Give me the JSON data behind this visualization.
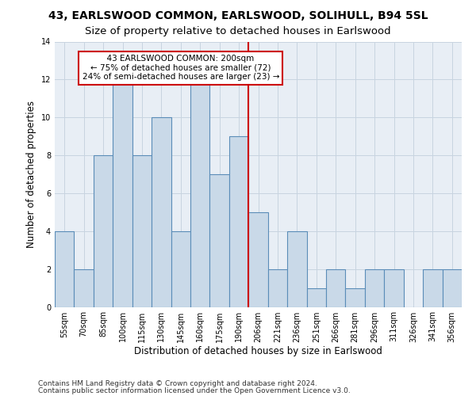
{
  "title": "43, EARLSWOOD COMMON, EARLSWOOD, SOLIHULL, B94 5SL",
  "subtitle": "Size of property relative to detached houses in Earlswood",
  "xlabel": "Distribution of detached houses by size in Earlswood",
  "ylabel": "Number of detached properties",
  "bar_labels": [
    "55sqm",
    "70sqm",
    "85sqm",
    "100sqm",
    "115sqm",
    "130sqm",
    "145sqm",
    "160sqm",
    "175sqm",
    "190sqm",
    "206sqm",
    "221sqm",
    "236sqm",
    "251sqm",
    "266sqm",
    "281sqm",
    "296sqm",
    "311sqm",
    "326sqm",
    "341sqm",
    "356sqm"
  ],
  "bar_values": [
    4,
    2,
    8,
    12,
    8,
    10,
    4,
    12,
    7,
    9,
    5,
    2,
    4,
    1,
    2,
    1,
    2,
    2,
    0,
    2,
    2
  ],
  "bar_color": "#c9d9e8",
  "bar_edgecolor": "#5b8db8",
  "bar_linewidth": 0.8,
  "ref_line_x": 10.0,
  "ref_line_color": "#cc0000",
  "annotation_text": "  43 EARLSWOOD COMMON: 200sqm  \n← 75% of detached houses are smaller (72)\n24% of semi-detached houses are larger (23) →",
  "annotation_box_edgecolor": "#cc0000",
  "annotation_box_facecolor": "#ffffff",
  "ylim": [
    0,
    14
  ],
  "yticks": [
    0,
    2,
    4,
    6,
    8,
    10,
    12,
    14
  ],
  "grid_color": "#c8d4e0",
  "background_color": "#e8eef5",
  "footer_line1": "Contains HM Land Registry data © Crown copyright and database right 2024.",
  "footer_line2": "Contains public sector information licensed under the Open Government Licence v3.0.",
  "title_fontsize": 10,
  "subtitle_fontsize": 9.5,
  "xlabel_fontsize": 8.5,
  "ylabel_fontsize": 8.5,
  "tick_fontsize": 7,
  "annotation_fontsize": 7.5,
  "footer_fontsize": 6.5
}
